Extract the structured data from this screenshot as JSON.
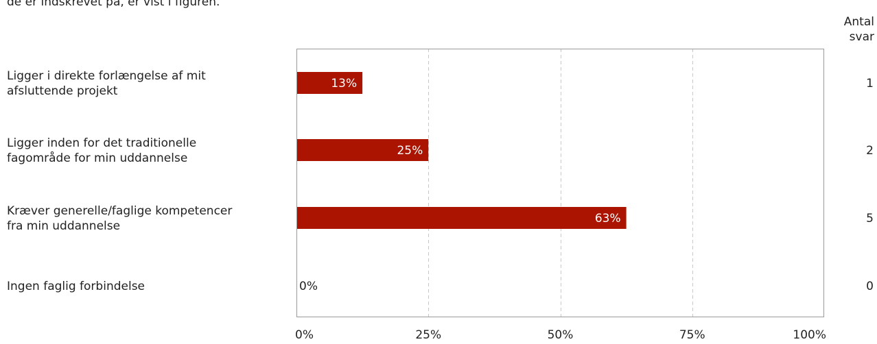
{
  "caption": "de er indskrevet på, er vist i figuren.",
  "count_header": {
    "line1": "Antal",
    "line2": "svar"
  },
  "colors": {
    "bar": "#aa1400",
    "frame": "#999999",
    "grid": "#c8c8c8",
    "text": "#222222"
  },
  "chart_data": {
    "type": "bar",
    "orientation": "horizontal",
    "categories": [
      [
        "Ligger i direkte forlængelse af mit",
        "afsluttende projekt"
      ],
      [
        "Ligger inden for det traditionelle",
        "fagområde for min uddannelse"
      ],
      [
        "Kræver generelle/faglige kompetencer",
        "fra min uddannelse"
      ],
      [
        "Ingen faglig forbindelse"
      ]
    ],
    "values": [
      12.5,
      25,
      62.5,
      0
    ],
    "value_labels": [
      "13%",
      "25%",
      "63%",
      "0%"
    ],
    "counts": [
      "1",
      "2",
      "5",
      "0"
    ],
    "xlim": [
      0,
      100
    ],
    "xticks": [
      0,
      25,
      50,
      75,
      100
    ],
    "xtick_labels": [
      "0%",
      "25%",
      "50%",
      "75%",
      "100%"
    ],
    "grid": true,
    "grid_style": "dashed-vertical"
  }
}
